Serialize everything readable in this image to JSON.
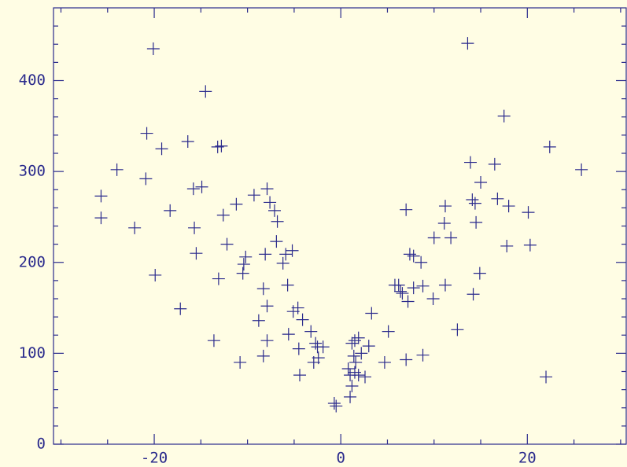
{
  "chart_data": {
    "type": "scatter",
    "color": "#2a2a8c",
    "background": "#fffde4",
    "xlim": [
      -30.8,
      30.6
    ],
    "ylim": [
      0,
      480
    ],
    "xticks": [
      -20,
      0,
      20
    ],
    "yticks": [
      0,
      100,
      200,
      300,
      400
    ],
    "xticks_minor": [
      -30,
      -25,
      -15,
      -10,
      -5,
      5,
      10,
      15,
      25,
      30
    ],
    "yticks_minor": [
      20,
      40,
      60,
      80,
      120,
      140,
      160,
      180,
      220,
      240,
      260,
      280,
      320,
      340,
      360,
      380,
      420,
      440,
      460
    ],
    "x": [
      -25.7,
      -25.7,
      -24.0,
      -22.1,
      -20.8,
      -20.9,
      -20.1,
      -19.9,
      -19.2,
      -18.3,
      -17.2,
      -16.4,
      -15.8,
      -15.7,
      -15.5,
      -14.9,
      -14.5,
      -13.2,
      -12.8,
      -13.1,
      -13.6,
      -12.6,
      -12.2,
      -11.2,
      -10.8,
      -10.5,
      -10.4,
      -10.2,
      -9.3,
      -8.8,
      -8.3,
      -8.3,
      -8.1,
      -7.9,
      -7.9,
      -7.9,
      -7.6,
      -7.1,
      -6.8,
      -6.9,
      -6.2,
      -5.9,
      -5.7,
      -5.6,
      -5.2,
      -5.1,
      -4.6,
      -4.5,
      -4.4,
      -4.1,
      -3.2,
      -2.9,
      -2.7,
      -2.5,
      -2.4,
      -1.9,
      -0.7,
      -0.5,
      0.8,
      1.0,
      1.0,
      1.2,
      1.2,
      1.4,
      1.5,
      1.6,
      1.9,
      1.5,
      1.9,
      2.2,
      2.6,
      3.0,
      3.3,
      4.7,
      5.1,
      5.8,
      6.2,
      6.4,
      6.6,
      7.0,
      7.0,
      7.2,
      7.4,
      7.8,
      7.8,
      8.6,
      8.8,
      8.8,
      9.9,
      10.0,
      11.1,
      11.2,
      11.2,
      11.8,
      12.5,
      13.6,
      13.9,
      14.1,
      14.2,
      14.4,
      14.5,
      15.0,
      14.9,
      16.5,
      16.8,
      17.5,
      17.8,
      18.0,
      20.1,
      20.3,
      22.0,
      22.4,
      25.8
    ],
    "values": [
      273,
      249,
      302,
      238,
      342,
      292,
      435,
      186,
      325,
      257,
      149,
      333,
      281,
      238,
      210,
      283,
      388,
      327,
      328,
      182,
      114,
      252,
      220,
      264,
      90,
      188,
      198,
      206,
      274,
      136,
      171,
      97,
      209,
      281,
      152,
      114,
      266,
      257,
      245,
      223,
      199,
      209,
      175,
      121,
      213,
      146,
      150,
      105,
      76,
      137,
      124,
      90,
      111,
      107,
      95,
      107,
      45,
      42,
      83,
      76,
      52,
      64,
      111,
      97,
      114,
      90,
      117,
      79,
      76,
      100,
      74,
      108,
      144,
      90,
      124,
      175,
      175,
      168,
      166,
      258,
      93,
      157,
      209,
      207,
      172,
      200,
      174,
      98,
      160,
      227,
      243,
      262,
      175,
      227,
      126,
      441,
      310,
      269,
      165,
      265,
      244,
      288,
      188,
      308,
      270,
      361,
      218,
      262,
      255,
      219,
      74,
      327,
      302
    ]
  }
}
